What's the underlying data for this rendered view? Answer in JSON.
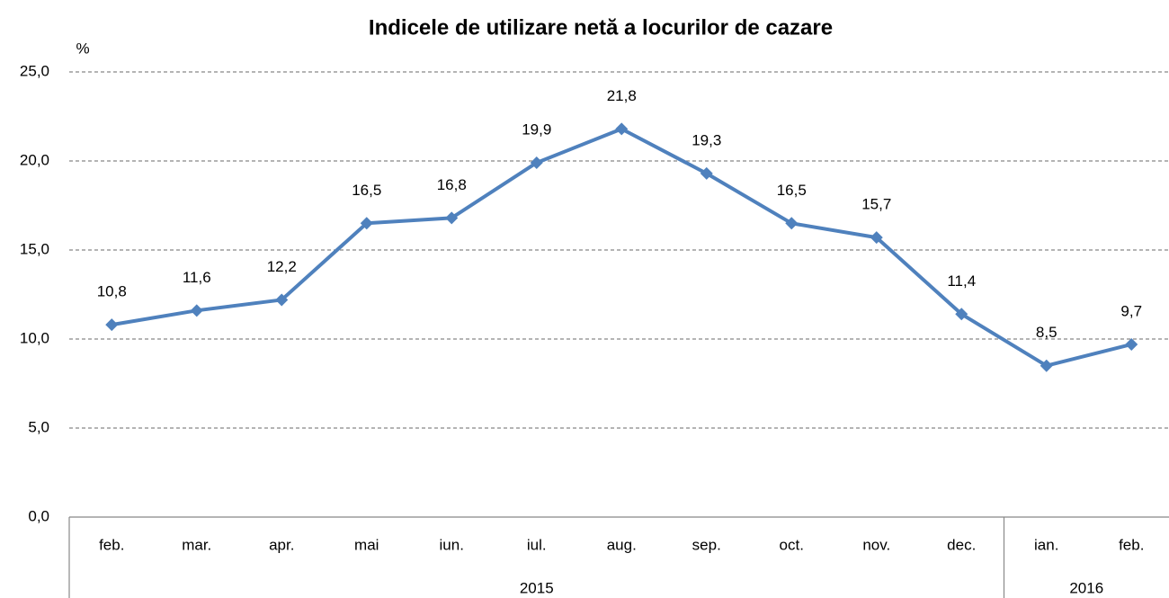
{
  "chart_data": {
    "type": "line",
    "title": "Indicele de utilizare netă a locurilor de cazare",
    "y_label": "%",
    "categories": [
      "feb.",
      "mar.",
      "apr.",
      "mai",
      "iun.",
      "iul.",
      "aug.",
      "sep.",
      "oct.",
      "nov.",
      "dec.",
      "ian.",
      "feb."
    ],
    "groups": [
      {
        "label": "2015",
        "count": 11
      },
      {
        "label": "2016",
        "count": 2
      }
    ],
    "series": [
      {
        "name": "Indicele de utilizare netă",
        "color": "#4f81bd",
        "values": [
          10.8,
          11.6,
          12.2,
          16.5,
          16.8,
          19.9,
          21.8,
          19.3,
          16.5,
          15.7,
          11.4,
          8.5,
          9.7
        ],
        "value_labels": [
          "10,8",
          "11,6",
          "12,2",
          "16,5",
          "16,8",
          "19,9",
          "21,8",
          "19,3",
          "16,5",
          "15,7",
          "11,4",
          "8,5",
          "9,7"
        ]
      }
    ],
    "ylim": [
      0,
      25
    ],
    "yticks": [
      {
        "value": 0,
        "label": "0,0"
      },
      {
        "value": 5,
        "label": "5,0"
      },
      {
        "value": 10,
        "label": "10,0"
      },
      {
        "value": 15,
        "label": "15,0"
      },
      {
        "value": 20,
        "label": "20,0"
      },
      {
        "value": 25,
        "label": "25,0"
      }
    ],
    "grid": true
  }
}
